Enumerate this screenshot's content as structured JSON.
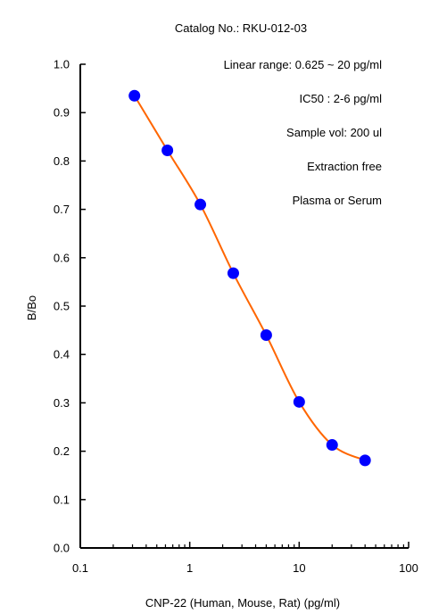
{
  "chart_data": {
    "type": "line",
    "title": "Catalog No.: RKU-012-03",
    "xlabel": "CNP-22 (Human, Mouse, Rat) (pg/ml)",
    "ylabel": "B/Bo",
    "xscale": "log",
    "xlim": [
      0.1,
      100
    ],
    "ylim": [
      0.0,
      1.0
    ],
    "xticks": [
      0.1,
      1,
      10,
      100
    ],
    "xtick_labels": [
      "0.1",
      "1",
      "10",
      "100"
    ],
    "yticks": [
      0.0,
      0.1,
      0.2,
      0.3,
      0.4,
      0.5,
      0.6,
      0.7,
      0.8,
      0.9,
      1.0
    ],
    "ytick_labels": [
      "0.0",
      "0.1",
      "0.2",
      "0.3",
      "0.4",
      "0.5",
      "0.6",
      "0.7",
      "0.8",
      "0.9",
      "1.0"
    ],
    "grid": false,
    "legend": "none",
    "annotations": [
      "Linear range: 0.625 ~ 20 pg/ml",
      "IC50 : 2-6 pg/ml",
      "Sample vol: 200 ul",
      "Extraction free",
      "Plasma or Serum"
    ],
    "series": [
      {
        "x": [
          0.3125,
          0.625,
          1.25,
          2.5,
          5,
          10,
          20,
          40
        ],
        "y": [
          0.935,
          0.822,
          0.71,
          0.568,
          0.44,
          0.302,
          0.213,
          0.181
        ],
        "line_color": "#ff6600",
        "marker_color": "#0000ff"
      }
    ]
  }
}
